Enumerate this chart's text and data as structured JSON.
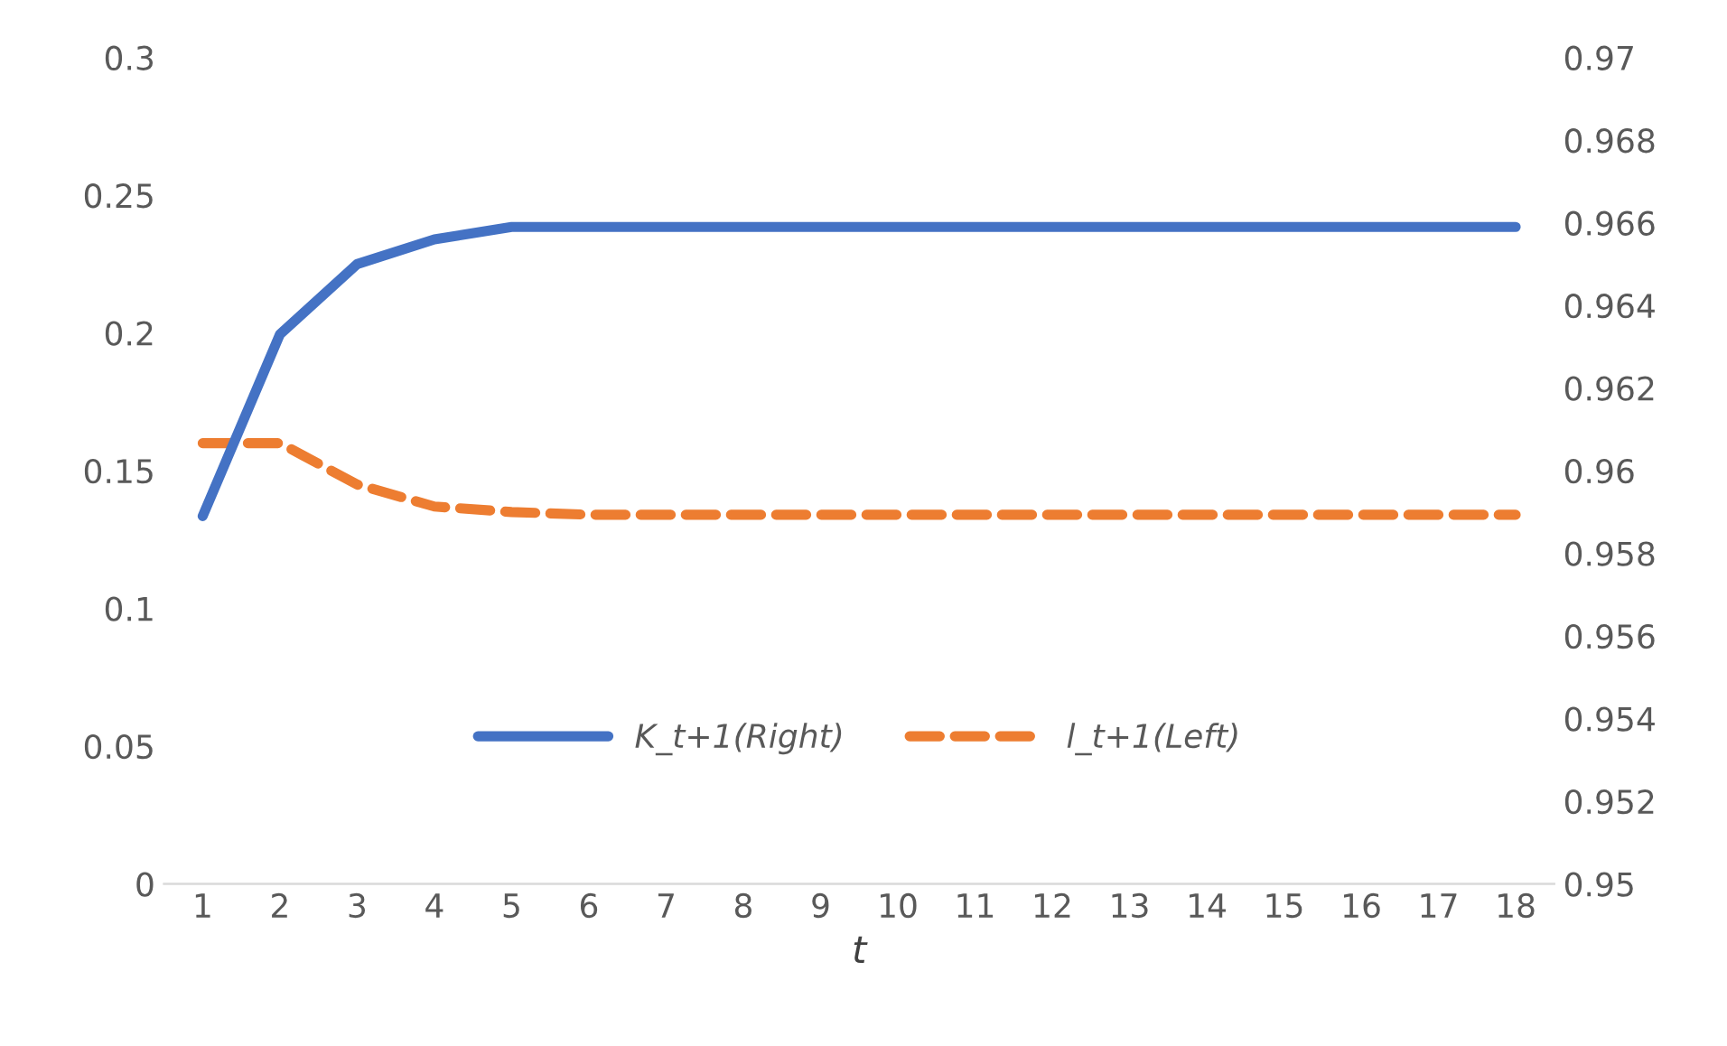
{
  "chart_data": {
    "type": "line",
    "xlabel": "t",
    "categories": [
      "1",
      "2",
      "3",
      "4",
      "5",
      "6",
      "7",
      "8",
      "9",
      "10",
      "11",
      "12",
      "13",
      "14",
      "15",
      "16",
      "17",
      "18"
    ],
    "series": [
      {
        "name": "K_t+1(Right)",
        "color": "#4472c4",
        "axis": "y2",
        "line_style": "solid",
        "values": [
          0.9589,
          0.9633,
          0.965,
          0.9656,
          0.9659,
          0.9659,
          0.9659,
          0.9659,
          0.9659,
          0.9659,
          0.9659,
          0.9659,
          0.9659,
          0.9659,
          0.9659,
          0.9659,
          0.9659,
          0.9659
        ]
      },
      {
        "name": "l_t+1(Left)",
        "color": "#ed7d31",
        "line_style": "dashed",
        "values": [
          0.16,
          0.16,
          0.145,
          0.137,
          0.135,
          0.134,
          0.134,
          0.134,
          0.134,
          0.134,
          0.134,
          0.134,
          0.134,
          0.134,
          0.134,
          0.134,
          0.134,
          0.134
        ]
      }
    ],
    "ylim": [
      0,
      0.3
    ],
    "yticks": [
      0,
      0.05,
      0.1,
      0.15,
      0.2,
      0.25,
      0.3
    ],
    "y2lim": [
      0.95,
      0.97
    ],
    "y2ticks": [
      0.95,
      0.952,
      0.954,
      0.956,
      0.958,
      0.96,
      0.962,
      0.964,
      0.966,
      0.968,
      0.97
    ],
    "grid": false,
    "legend": "bottom",
    "marker": "none"
  }
}
